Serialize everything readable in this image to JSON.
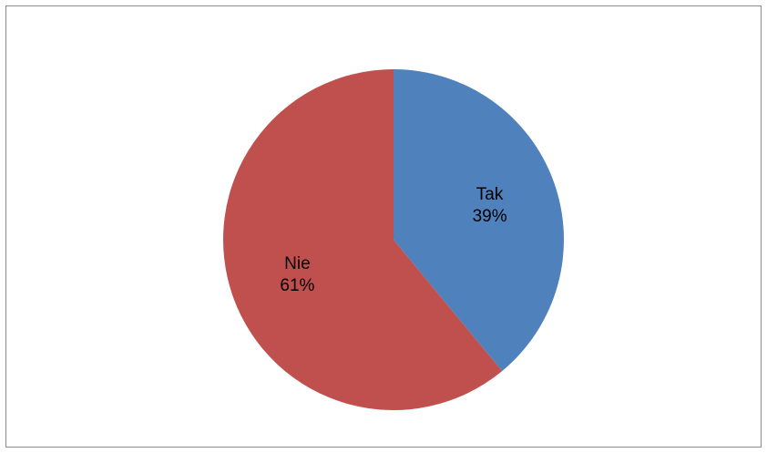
{
  "chart_data": {
    "type": "pie",
    "title": "",
    "categories": [
      "Tak",
      "Nie"
    ],
    "values": [
      39,
      61
    ],
    "value_labels": [
      "39%",
      "61%"
    ],
    "colors": [
      "#4F81BD",
      "#C0504D"
    ],
    "start_angle_deg": 0,
    "direction": "clockwise",
    "legend": "none",
    "data_labels": "inside"
  }
}
